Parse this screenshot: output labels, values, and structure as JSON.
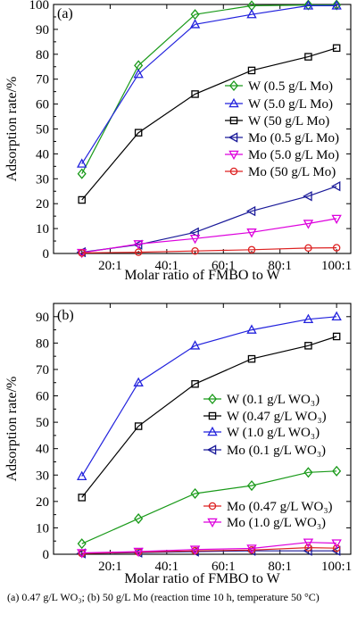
{
  "caption": "(a)  0.47  g/L  WO₃;  (b)  50  g/L  Mo  (reaction  time  10  h, temperature 50 °C)",
  "chart_data": [
    {
      "type": "line",
      "panel_label": "(a)",
      "xlabel": "Molar ratio of FMBO to W",
      "ylabel": "Adsorption rate/%",
      "xlim": [
        0,
        105
      ],
      "ylim": [
        0,
        100
      ],
      "x_ticks": [
        20,
        40,
        60,
        80,
        100
      ],
      "x_tick_labels": [
        "20:1",
        "40:1",
        "60:1",
        "80:1",
        "100:1"
      ],
      "y_ticks": [
        0,
        10,
        20,
        30,
        40,
        50,
        60,
        70,
        80,
        90,
        100
      ],
      "y_tick_labels": [
        "0",
        "10",
        "20",
        "30",
        "40",
        "50",
        "60",
        "70",
        "80",
        "90",
        "100"
      ],
      "x": [
        10,
        30,
        50,
        70,
        90,
        100
      ],
      "legend_position": "right",
      "series": [
        {
          "name": "W (0.5 g/L Mo)",
          "color": "#1a9a1a",
          "marker": "diamond",
          "values": [
            32,
            75.5,
            96,
            99.5,
            99.8,
            99.8
          ]
        },
        {
          "name": "W (5.0 g/L Mo)",
          "color": "#2222dd",
          "marker": "triangle-up",
          "values": [
            36,
            72,
            92,
            96,
            99.5,
            99.5
          ]
        },
        {
          "name": "W (50 g/L Mo)",
          "color": "#000000",
          "marker": "square",
          "values": [
            21.5,
            48.5,
            64,
            73.5,
            79,
            82.5
          ]
        },
        {
          "name": "Mo (0.5 g/L Mo)",
          "color": "#1a1a99",
          "marker": "triangle-left",
          "values": [
            0.5,
            3.5,
            8.5,
            17,
            23,
            27
          ]
        },
        {
          "name": "Mo (5.0 g/L Mo)",
          "color": "#dd00dd",
          "marker": "triangle-down",
          "values": [
            0.3,
            3.8,
            6,
            8.5,
            12,
            14
          ]
        },
        {
          "name": "Mo (50 g/L Mo)",
          "color": "#dd2222",
          "marker": "circle",
          "values": [
            0.2,
            0.5,
            1,
            1.5,
            2.2,
            2.3
          ]
        }
      ]
    },
    {
      "type": "line",
      "panel_label": "(b)",
      "xlabel": "Molar ratio of FMBO to W",
      "ylabel": "Adsorption rate/%",
      "xlim": [
        0,
        105
      ],
      "ylim": [
        0,
        95
      ],
      "x_ticks": [
        20,
        40,
        60,
        80,
        100
      ],
      "x_tick_labels": [
        "20:1",
        "40:1",
        "60:1",
        "80:1",
        "100:1"
      ],
      "y_ticks": [
        0,
        10,
        20,
        30,
        40,
        50,
        60,
        70,
        80,
        90
      ],
      "y_tick_labels": [
        "0",
        "10",
        "20",
        "30",
        "40",
        "50",
        "60",
        "70",
        "80",
        "90"
      ],
      "x": [
        10,
        30,
        50,
        70,
        90,
        100
      ],
      "legend_position": "right",
      "series": [
        {
          "name": "W (0.1 g/L WO₃)",
          "color": "#1a9a1a",
          "marker": "diamond",
          "values": [
            4,
            13.5,
            23,
            26,
            31,
            31.5
          ]
        },
        {
          "name": "W (0.47 g/L WO₃)",
          "color": "#000000",
          "marker": "square",
          "values": [
            21.5,
            48.5,
            64.5,
            74,
            79,
            82.5
          ]
        },
        {
          "name": "W (1.0 g/L WO₃)",
          "color": "#2222dd",
          "marker": "triangle-up",
          "values": [
            29.5,
            65,
            79,
            85,
            89,
            90
          ]
        },
        {
          "name": "Mo (0.1 g/L WO₃)",
          "color": "#1a1a99",
          "marker": "triangle-left",
          "values": [
            0.3,
            0.6,
            1,
            1.3,
            1.3,
            1.3
          ]
        },
        {
          "name": "Mo (0.47 g/L WO₃)",
          "color": "#dd2222",
          "marker": "circle",
          "values": [
            0.3,
            0.8,
            1.3,
            1.6,
            2.5,
            2.3
          ]
        },
        {
          "name": "Mo (1.0 g/L WO₃)",
          "color": "#dd00dd",
          "marker": "triangle-down",
          "values": [
            0.5,
            1,
            1.8,
            2.2,
            4.5,
            4.2
          ]
        }
      ]
    }
  ]
}
